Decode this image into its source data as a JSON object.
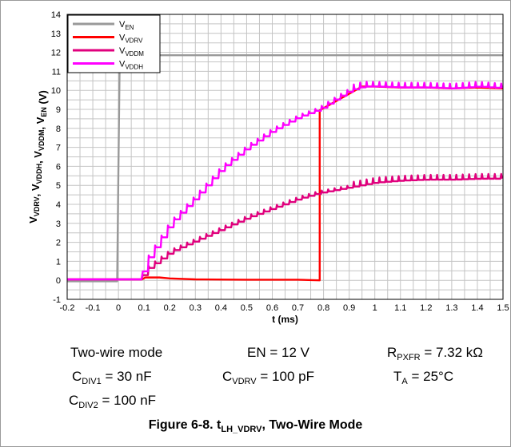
{
  "chart_data": {
    "type": "line",
    "title": "",
    "xlabel": "t (ms)",
    "ylabel": "V_VDRV, V_VDDH, V_VDDM, V_EN (V)",
    "xlim": [
      -0.2,
      1.5
    ],
    "ylim": [
      -1,
      14
    ],
    "x_ticks": [
      -0.2,
      -0.1,
      0,
      0.1,
      0.2,
      0.3,
      0.4,
      0.5,
      0.6,
      0.7,
      0.8,
      0.9,
      1,
      1.1,
      1.2,
      1.3,
      1.4,
      1.5
    ],
    "x_tick_labels": [
      "-0.2",
      "-0.1",
      "0",
      "0.1",
      "0.2",
      "0.3",
      "0.4",
      "0.5",
      "0.6",
      "0.7",
      "0.8",
      "0.9",
      "1",
      "1.1",
      "1.2",
      "1.3",
      "1.4",
      "1.5"
    ],
    "y_ticks": [
      -1,
      0,
      1,
      2,
      3,
      4,
      5,
      6,
      7,
      8,
      9,
      10,
      11,
      12,
      13,
      14
    ],
    "y_tick_labels": [
      "-1",
      "0",
      "1",
      "2",
      "3",
      "4",
      "5",
      "6",
      "7",
      "8",
      "9",
      "10",
      "11",
      "12",
      "13",
      "14"
    ],
    "grid": true,
    "grid_minor_per_major": 2,
    "legend_position": "top-left",
    "series": [
      {
        "name": "V_EN",
        "color": "#999999",
        "x": [
          -0.2,
          -0.005,
          0,
          0.005,
          0.02,
          1.5
        ],
        "y": [
          -0.05,
          -0.05,
          6,
          11.85,
          11.85,
          11.85
        ]
      },
      {
        "name": "V_VDRV",
        "color": "#ff0000",
        "x": [
          -0.2,
          0.092,
          0.105,
          0.16,
          0.2,
          0.3,
          0.5,
          0.7,
          0.785,
          0.785,
          0.95,
          1.0,
          1.1,
          1.2,
          1.3,
          1.4,
          1.5
        ],
        "y": [
          0.05,
          0.05,
          0.15,
          0.15,
          0.1,
          0.05,
          0.03,
          0.03,
          0.0,
          8.95,
          10.2,
          10.2,
          10.15,
          10.15,
          10.1,
          10.15,
          10.1
        ]
      },
      {
        "name": "V_VDDM",
        "color": "#e0007d",
        "x": [
          -0.2,
          0.09,
          0.1,
          0.2,
          0.3,
          0.4,
          0.5,
          0.6,
          0.7,
          0.78,
          0.9,
          1.0,
          1.1,
          1.2,
          1.3,
          1.4,
          1.5
        ],
        "y": [
          0.05,
          0.05,
          0.5,
          1.5,
          2.1,
          2.7,
          3.3,
          3.8,
          4.3,
          4.6,
          4.9,
          5.15,
          5.25,
          5.3,
          5.3,
          5.35,
          5.35
        ]
      },
      {
        "name": "V_VDDH",
        "color": "#ff00ff",
        "x": [
          -0.2,
          0.09,
          0.1,
          0.2,
          0.3,
          0.4,
          0.5,
          0.6,
          0.7,
          0.78,
          0.85,
          0.9,
          0.95,
          1.0,
          1.1,
          1.2,
          1.3,
          1.4,
          1.5
        ],
        "y": [
          0.05,
          0.05,
          0.9,
          3.0,
          4.4,
          5.9,
          7.0,
          7.9,
          8.6,
          9.0,
          9.6,
          10.0,
          10.2,
          10.2,
          10.15,
          10.15,
          10.1,
          10.2,
          10.1
        ]
      }
    ]
  },
  "conditions": {
    "mode": "Two-wire mode",
    "en_label": "EN = 12 V",
    "rpxfr_sym": "R",
    "rpxfr_sub": "PXFR",
    "rpxfr_val": " = 7.32 kΩ",
    "cdiv1_sym": "C",
    "cdiv1_sub": "DIV1",
    "cdiv1_val": " = 30 nF",
    "cvdrv_sym": "C",
    "cvdrv_sub": "VDRV",
    "cvdrv_val": " = 100 pF",
    "ta_sym": "T",
    "ta_sub": "A",
    "ta_val": " = 25°C",
    "cdiv2_sym": "C",
    "cdiv2_sub": "DIV2",
    "cdiv2_val": " = 100 nF"
  },
  "caption": {
    "prefix": "Figure 6-8. t",
    "sub": "LH_VDRV",
    "suffix": ", Two-Wire Mode"
  }
}
